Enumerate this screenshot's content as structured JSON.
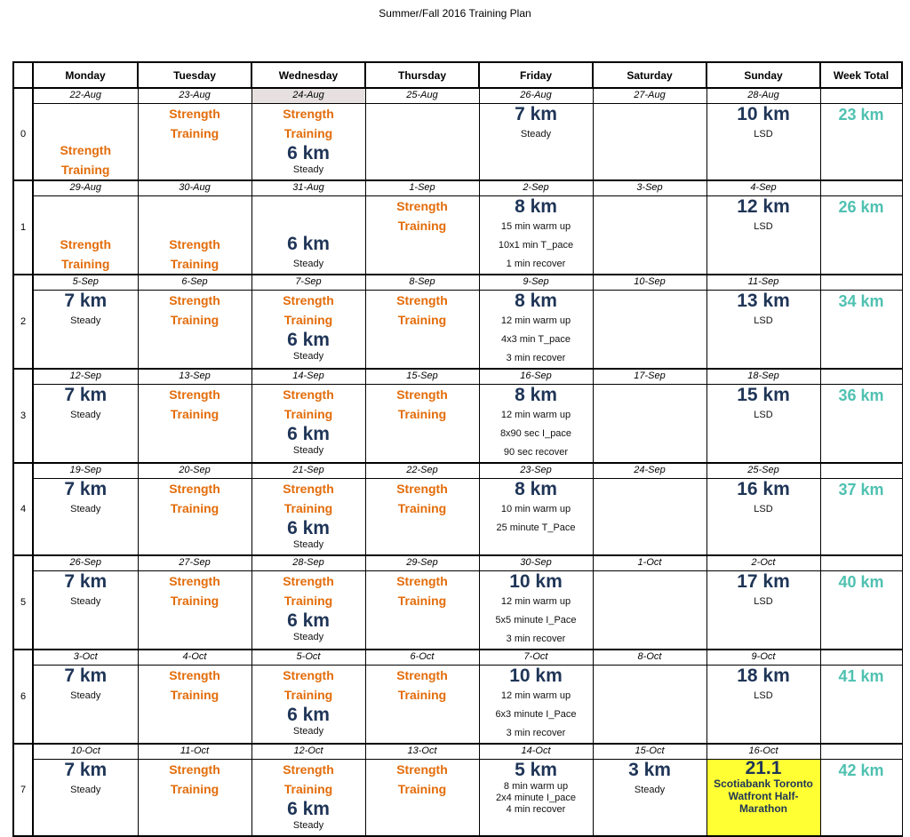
{
  "title": "Summer/Fall 2016 Training Plan",
  "headers": [
    "Monday",
    "Tuesday",
    "Wednesday",
    "Thursday",
    "Friday",
    "Saturday",
    "Sunday",
    "Week Total"
  ],
  "colors": {
    "distance": "#1f3557",
    "strength": "#e36c0a",
    "total": "#4fc1b1",
    "race_highlight": "#ffff33",
    "date_highlight": "#e6e0e0"
  },
  "weeks": [
    {
      "num": "0",
      "total": "23 km",
      "dates": [
        "22-Aug",
        "23-Aug",
        "24-Aug",
        "25-Aug",
        "26-Aug",
        "27-Aug",
        "28-Aug"
      ],
      "days": [
        {
          "strength": [
            "Strength",
            "Training"
          ],
          "strength_bottom": true
        },
        {
          "strength": [
            "Strength",
            "Training"
          ]
        },
        {
          "strength": [
            "Strength",
            "Training"
          ],
          "km": "6 km",
          "lines": [
            "Steady"
          ]
        },
        {},
        {
          "km": "7 km",
          "lines": [
            "Steady"
          ]
        },
        {},
        {
          "km": "10 km",
          "lines": [
            "LSD"
          ]
        }
      ]
    },
    {
      "num": "1",
      "total": "26 km",
      "dates": [
        "29-Aug",
        "30-Aug",
        "31-Aug",
        "1-Sep",
        "2-Sep",
        "3-Sep",
        "4-Sep"
      ],
      "days": [
        {
          "strength": [
            "Strength",
            "Training"
          ],
          "strength_bottom": true
        },
        {
          "strength": [
            "Strength",
            "Training"
          ],
          "strength_bottom": true
        },
        {
          "km": "6 km",
          "lines": [
            "Steady"
          ],
          "km_bottom": true
        },
        {
          "strength": [
            "Strength",
            "Training"
          ]
        },
        {
          "km": "8 km",
          "lines": [
            "15 min warm up",
            "10x1 min T_pace",
            "1 min recover"
          ]
        },
        {},
        {
          "km": "12 km",
          "lines": [
            "LSD"
          ]
        }
      ]
    },
    {
      "num": "2",
      "total": "34 km",
      "dates": [
        "5-Sep",
        "6-Sep",
        "7-Sep",
        "8-Sep",
        "9-Sep",
        "10-Sep",
        "11-Sep"
      ],
      "days": [
        {
          "km": "7 km",
          "lines": [
            "Steady"
          ]
        },
        {
          "strength": [
            "Strength",
            "Training"
          ]
        },
        {
          "strength": [
            "Strength",
            "Training"
          ],
          "km": "6 km",
          "lines": [
            "Steady"
          ]
        },
        {
          "strength": [
            "Strength",
            "Training"
          ]
        },
        {
          "km": "8 km",
          "lines": [
            "12 min warm up",
            "4x3 min T_pace",
            "3 min recover"
          ]
        },
        {},
        {
          "km": "13 km",
          "lines": [
            "LSD"
          ]
        }
      ]
    },
    {
      "num": "3",
      "total": "36 km",
      "dates": [
        "12-Sep",
        "13-Sep",
        "14-Sep",
        "15-Sep",
        "16-Sep",
        "17-Sep",
        "18-Sep"
      ],
      "days": [
        {
          "km": "7 km",
          "lines": [
            "Steady"
          ]
        },
        {
          "strength": [
            "Strength",
            "Training"
          ]
        },
        {
          "strength": [
            "Strength",
            "Training"
          ],
          "km": "6 km",
          "lines": [
            "Steady"
          ]
        },
        {
          "strength": [
            "Strength",
            "Training"
          ]
        },
        {
          "km": "8 km",
          "lines": [
            "12 min warm up",
            "8x90 sec I_pace",
            "90 sec recover"
          ]
        },
        {},
        {
          "km": "15 km",
          "lines": [
            "LSD"
          ]
        }
      ]
    },
    {
      "num": "4",
      "total": "37 km",
      "dates": [
        "19-Sep",
        "20-Sep",
        "21-Sep",
        "22-Sep",
        "23-Sep",
        "24-Sep",
        "25-Sep"
      ],
      "days": [
        {
          "km": "7 km",
          "lines": [
            "Steady"
          ]
        },
        {
          "strength": [
            "Strength",
            "Training"
          ]
        },
        {
          "strength": [
            "Strength",
            "Training"
          ],
          "km": "6 km",
          "lines": [
            "Steady"
          ]
        },
        {
          "strength": [
            "Strength",
            "Training"
          ]
        },
        {
          "km": "8 km",
          "lines": [
            "10 min warm up",
            "25 minute T_Pace"
          ]
        },
        {},
        {
          "km": "16 km",
          "lines": [
            "LSD"
          ]
        }
      ]
    },
    {
      "num": "5",
      "total": "40 km",
      "dates": [
        "26-Sep",
        "27-Sep",
        "28-Sep",
        "29-Sep",
        "30-Sep",
        "1-Oct",
        "2-Oct"
      ],
      "days": [
        {
          "km": "7 km",
          "lines": [
            "Steady"
          ]
        },
        {
          "strength": [
            "Strength",
            "Training"
          ]
        },
        {
          "strength": [
            "Strength",
            "Training"
          ],
          "km": "6 km",
          "lines": [
            "Steady"
          ]
        },
        {
          "strength": [
            "Strength",
            "Training"
          ]
        },
        {
          "km": "10 km",
          "lines": [
            "12 min warm up",
            "5x5 minute I_Pace",
            "3 min recover"
          ]
        },
        {},
        {
          "km": "17 km",
          "lines": [
            "LSD"
          ]
        }
      ]
    },
    {
      "num": "6",
      "total": "41 km",
      "dates": [
        "3-Oct",
        "4-Oct",
        "5-Oct",
        "6-Oct",
        "7-Oct",
        "8-Oct",
        "9-Oct"
      ],
      "days": [
        {
          "km": "7 km",
          "lines": [
            "Steady"
          ]
        },
        {
          "strength": [
            "Strength",
            "Training"
          ]
        },
        {
          "strength": [
            "Strength",
            "Training"
          ],
          "km": "6 km",
          "lines": [
            "Steady"
          ]
        },
        {
          "strength": [
            "Strength",
            "Training"
          ]
        },
        {
          "km": "10 km",
          "lines": [
            "12 min warm up",
            "6x3 minute I_Pace",
            "3 min recover"
          ]
        },
        {},
        {
          "km": "18 km",
          "lines": [
            "LSD"
          ]
        }
      ]
    },
    {
      "num": "7",
      "total": "42 km",
      "dates": [
        "10-Oct",
        "11-Oct",
        "12-Oct",
        "13-Oct",
        "14-Oct",
        "15-Oct",
        "16-Oct"
      ],
      "days": [
        {
          "km": "7 km",
          "lines": [
            "Steady"
          ]
        },
        {
          "strength": [
            "Strength",
            "Training"
          ]
        },
        {
          "strength": [
            "Strength",
            "Training"
          ],
          "km": "6 km",
          "lines": [
            "Steady"
          ],
          "tight": true
        },
        {
          "strength": [
            "Strength",
            "Training"
          ]
        },
        {
          "km": "5 km",
          "lines": [
            "8 min warm up",
            "2x4 minute I_pace",
            "4 min recover"
          ],
          "tight": true
        },
        {
          "km": "3 km",
          "lines": [
            "Steady"
          ]
        },
        {
          "race": true,
          "km": "21.1",
          "lines": [
            "Scotiabank Toronto",
            "Watfront Half-",
            "Marathon"
          ]
        }
      ]
    }
  ]
}
